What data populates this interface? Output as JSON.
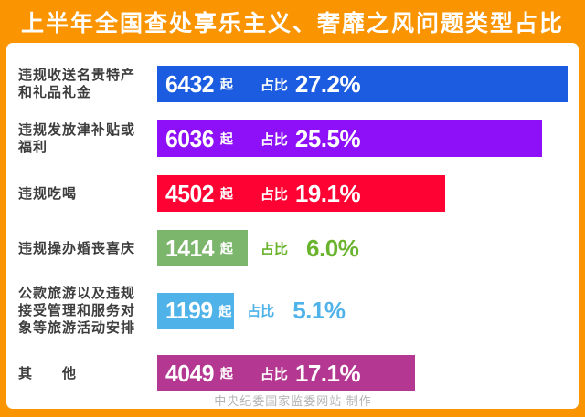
{
  "title": "上半年全国查处享乐主义、奢靡之风问题类型占比",
  "footer": "中央纪委国家监委网站 制作",
  "colors": {
    "frame_orange": "#fa9400",
    "panel_white": "#ffffff",
    "label_text": "#3d3d3d",
    "bar_text": "#ffffff",
    "footer_gray": "#b5b5b5"
  },
  "chart_data": {
    "type": "bar",
    "orientation": "horizontal",
    "title": "上半年全国查处享乐主义、奢靡之风问题类型占比",
    "unit_label": "起",
    "ratio_label": "占比",
    "xlim": [
      0,
      27.2
    ],
    "grid": false,
    "legend": false,
    "items": [
      {
        "label_lines": [
          "违规收送名贵特产",
          "和礼品礼金"
        ],
        "count": 6432,
        "pct": "27.2%",
        "pct_value": 27.2,
        "color": "#1b5ce0",
        "pct_inside": true
      },
      {
        "label_lines": [
          "违规发放津补贴或",
          "福利"
        ],
        "count": 6036,
        "pct": "25.5%",
        "pct_value": 25.5,
        "color": "#8e10f8",
        "pct_inside": true
      },
      {
        "label_lines": [
          "违规吃喝"
        ],
        "count": 4502,
        "pct": "19.1%",
        "pct_value": 19.1,
        "color": "#fd0233",
        "pct_inside": true
      },
      {
        "label_lines": [
          "违规操办婚丧喜庆"
        ],
        "count": 1414,
        "pct": "6.0%",
        "pct_value": 6.0,
        "color": "#7cb56c",
        "pct_inside": false,
        "accent": "#6ab32d"
      },
      {
        "label_lines": [
          "公款旅游以及违规",
          "接受管理和服务对",
          "象等旅游活动安排"
        ],
        "count": 1199,
        "pct": "5.1%",
        "pct_value": 5.1,
        "color": "#4fb2e8",
        "pct_inside": false,
        "accent": "#4fb2e8"
      },
      {
        "label_lines": [
          "其　　他"
        ],
        "count": 4049,
        "pct": "17.1%",
        "pct_value": 17.1,
        "color": "#b43791",
        "pct_inside": true
      }
    ]
  }
}
